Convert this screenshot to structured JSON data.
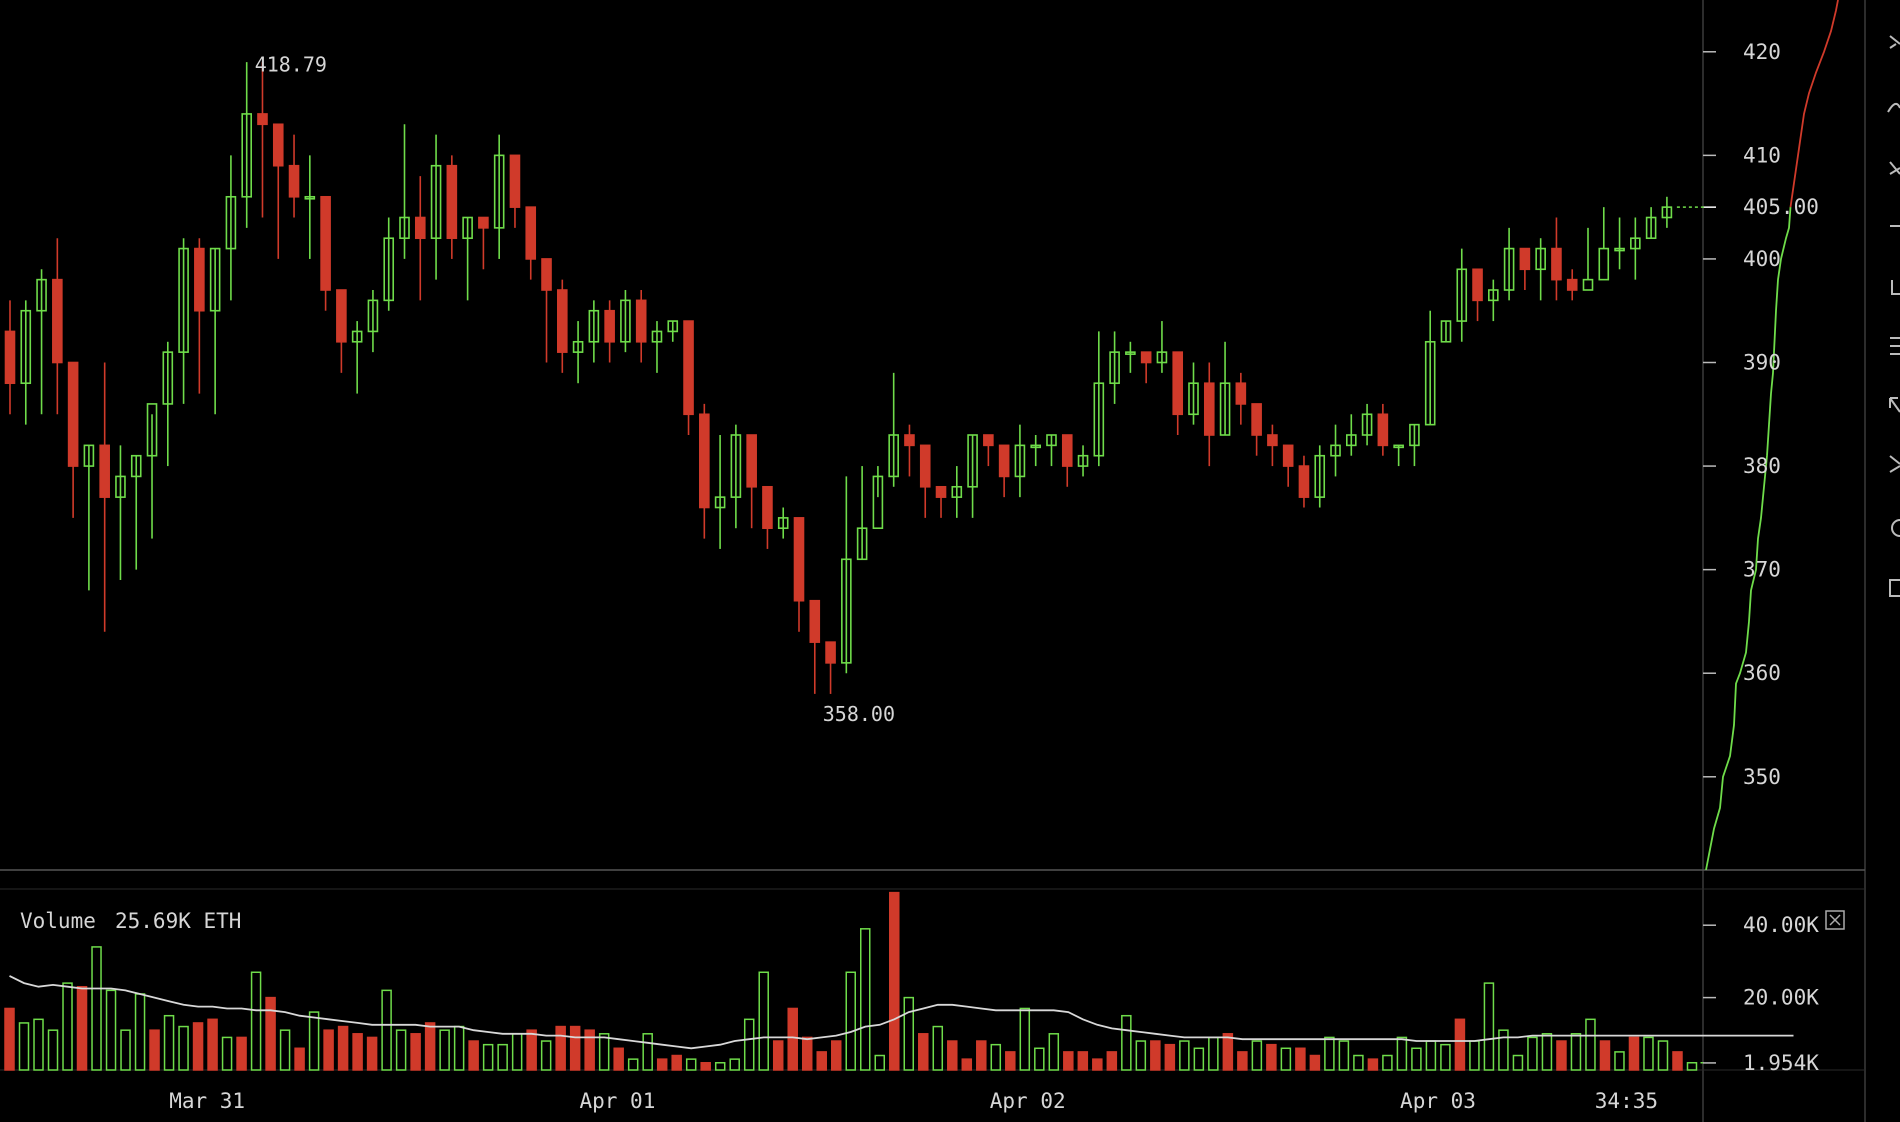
{
  "colors": {
    "up": "#6fdc4a",
    "down": "#d03a2a",
    "grid": "#444444",
    "text": "#d6d6d6",
    "ma": "#d8d8d8",
    "background": "#000000"
  },
  "toolbar": {
    "icons": [
      "crosshair-icon",
      "trend-line-icon",
      "fib-icon",
      "horizontal-line-icon",
      "vertical-line-icon",
      "parallel-channel-icon",
      "arrow-icon",
      "measure-icon",
      "circle-icon",
      "rectangle-icon"
    ]
  },
  "chart_data": {
    "type": "candlestick",
    "y_axis": {
      "min": 341,
      "max": 425,
      "ticks": [
        420,
        410,
        400,
        390,
        380,
        370,
        360,
        350
      ]
    },
    "last_price_label": "405.00",
    "last_price": 405,
    "high_label": "418.79",
    "high_value": 418.79,
    "low_label": "358.00",
    "low_value": 358,
    "x_labels": [
      "Mar 31",
      "Apr 01",
      "Apr 02",
      "Apr 03"
    ],
    "x_label_indices": [
      13,
      39,
      65,
      91
    ],
    "time_label": "34:35",
    "candles": [
      [
        393,
        388,
        396,
        385
      ],
      [
        388,
        395,
        396,
        384
      ],
      [
        395,
        398,
        399,
        385
      ],
      [
        398,
        390,
        402,
        385
      ],
      [
        390,
        380,
        390,
        375
      ],
      [
        380,
        382,
        382,
        368
      ],
      [
        382,
        377,
        390,
        364
      ],
      [
        377,
        379,
        382,
        369
      ],
      [
        379,
        381,
        381,
        370
      ],
      [
        381,
        386,
        385,
        373
      ],
      [
        386,
        391,
        392,
        380
      ],
      [
        391,
        401,
        402,
        386
      ],
      [
        401,
        395,
        402,
        387
      ],
      [
        395,
        401,
        401,
        385
      ],
      [
        401,
        406,
        410,
        396
      ],
      [
        406,
        414,
        419,
        403
      ],
      [
        414,
        413,
        419,
        404
      ],
      [
        413,
        409,
        413,
        400
      ],
      [
        409,
        406,
        412,
        404
      ],
      [
        406,
        406,
        410,
        400
      ],
      [
        406,
        397,
        406,
        395
      ],
      [
        397,
        392,
        397,
        389
      ],
      [
        392,
        393,
        394,
        387
      ],
      [
        393,
        396,
        397,
        391
      ],
      [
        396,
        402,
        404,
        395
      ],
      [
        402,
        404,
        413,
        400
      ],
      [
        404,
        402,
        408,
        396
      ],
      [
        402,
        409,
        412,
        398
      ],
      [
        409,
        402,
        410,
        400
      ],
      [
        402,
        404,
        404,
        396
      ],
      [
        404,
        403,
        403,
        399
      ],
      [
        403,
        410,
        412,
        400
      ],
      [
        410,
        405,
        410,
        403
      ],
      [
        405,
        400,
        405,
        398
      ],
      [
        400,
        397,
        400,
        390
      ],
      [
        397,
        391,
        398,
        389
      ],
      [
        391,
        392,
        394,
        388
      ],
      [
        392,
        395,
        396,
        390
      ],
      [
        395,
        392,
        396,
        390
      ],
      [
        392,
        396,
        397,
        391
      ],
      [
        396,
        392,
        397,
        390
      ],
      [
        392,
        393,
        394,
        389
      ],
      [
        393,
        394,
        394,
        392
      ],
      [
        394,
        385,
        394,
        383
      ],
      [
        385,
        376,
        386,
        373
      ],
      [
        376,
        377,
        383,
        372
      ],
      [
        377,
        383,
        384,
        374
      ],
      [
        383,
        378,
        383,
        374
      ],
      [
        378,
        374,
        378,
        372
      ],
      [
        374,
        375,
        376,
        373
      ],
      [
        375,
        367,
        375,
        364
      ],
      [
        367,
        363,
        367,
        358
      ],
      [
        363,
        361,
        363,
        358
      ],
      [
        361,
        371,
        379,
        360
      ],
      [
        371,
        374,
        380,
        371
      ],
      [
        374,
        379,
        380,
        377
      ],
      [
        379,
        383,
        389,
        378
      ],
      [
        383,
        382,
        384,
        379
      ],
      [
        382,
        378,
        382,
        375
      ],
      [
        378,
        377,
        378,
        375
      ],
      [
        377,
        378,
        380,
        375
      ],
      [
        378,
        383,
        383,
        375
      ],
      [
        383,
        382,
        383,
        380
      ],
      [
        382,
        379,
        382,
        377
      ],
      [
        379,
        382,
        384,
        377
      ],
      [
        382,
        382,
        383,
        380
      ],
      [
        382,
        383,
        383,
        380
      ],
      [
        383,
        380,
        383,
        378
      ],
      [
        380,
        381,
        382,
        379
      ],
      [
        381,
        388,
        393,
        380
      ],
      [
        388,
        391,
        393,
        386
      ],
      [
        391,
        391,
        392,
        389
      ],
      [
        391,
        390,
        391,
        388
      ],
      [
        390,
        391,
        394,
        389
      ],
      [
        391,
        385,
        391,
        383
      ],
      [
        385,
        388,
        390,
        384
      ],
      [
        388,
        383,
        390,
        380
      ],
      [
        383,
        388,
        392,
        383
      ],
      [
        388,
        386,
        389,
        384
      ],
      [
        386,
        383,
        386,
        381
      ],
      [
        383,
        382,
        384,
        380
      ],
      [
        382,
        380,
        382,
        378
      ],
      [
        380,
        377,
        381,
        376
      ],
      [
        377,
        381,
        382,
        376
      ],
      [
        381,
        382,
        384,
        379
      ],
      [
        382,
        383,
        385,
        381
      ],
      [
        383,
        385,
        386,
        382
      ],
      [
        385,
        382,
        386,
        381
      ],
      [
        382,
        382,
        382,
        380
      ],
      [
        382,
        384,
        384,
        380
      ],
      [
        384,
        392,
        395,
        384
      ],
      [
        392,
        394,
        394,
        392
      ],
      [
        394,
        399,
        401,
        392
      ],
      [
        399,
        396,
        399,
        394
      ],
      [
        396,
        397,
        398,
        394
      ],
      [
        397,
        401,
        403,
        396
      ],
      [
        401,
        399,
        401,
        397
      ],
      [
        399,
        401,
        402,
        396
      ],
      [
        401,
        398,
        404,
        396
      ],
      [
        398,
        397,
        399,
        396
      ],
      [
        397,
        398,
        403,
        398
      ],
      [
        398,
        401,
        405,
        401
      ],
      [
        401,
        401,
        404,
        399
      ],
      [
        401,
        402,
        404,
        398
      ],
      [
        402,
        404,
        405,
        402
      ],
      [
        404,
        405,
        406,
        403
      ]
    ],
    "depth_curve": [
      [
        0.0,
        341
      ],
      [
        4.0,
        343
      ],
      [
        8.0,
        345
      ],
      [
        14.0,
        347
      ],
      [
        17.0,
        350
      ],
      [
        24.0,
        352
      ],
      [
        28.0,
        355
      ],
      [
        29.0,
        357
      ],
      [
        30.0,
        359
      ],
      [
        34.0,
        360
      ],
      [
        40.0,
        362
      ],
      [
        43.0,
        365
      ],
      [
        45.0,
        368
      ],
      [
        50.0,
        370
      ],
      [
        52.0,
        373
      ],
      [
        55.0,
        375
      ],
      [
        57.0,
        377
      ],
      [
        59.0,
        379
      ],
      [
        61.0,
        381
      ],
      [
        63.0,
        384
      ],
      [
        65.0,
        387
      ],
      [
        67.0,
        389
      ],
      [
        68.0,
        391
      ],
      [
        70.0,
        395
      ],
      [
        72.0,
        398
      ],
      [
        75.0,
        400
      ],
      [
        80.0,
        402
      ],
      [
        83.0,
        403
      ],
      [
        84.5,
        405
      ],
      [
        86.0,
        406
      ],
      [
        89.0,
        408
      ],
      [
        92.0,
        410
      ],
      [
        95.0,
        412
      ],
      [
        98.0,
        414
      ],
      [
        103.0,
        416
      ],
      [
        110.0,
        418
      ],
      [
        118.0,
        420
      ],
      [
        125.0,
        422
      ],
      [
        130.0,
        424
      ],
      [
        132.0,
        425
      ]
    ],
    "volume": {
      "label": "Volume",
      "value_label": "25.69K ETH",
      "ticks": [
        {
          "value": 40000,
          "label": "40.00K"
        },
        {
          "value": 20000,
          "label": "20.00K"
        },
        {
          "value": 1954,
          "label": "1.954K"
        }
      ],
      "max": 50000,
      "values": [
        17000,
        13000,
        14000,
        11000,
        24000,
        23000,
        34000,
        22000,
        11000,
        21000,
        11000,
        15000,
        12000,
        13000,
        14000,
        9000,
        9000,
        27000,
        20000,
        11000,
        6000,
        16000,
        11000,
        12000,
        10000,
        9000,
        22000,
        11000,
        10000,
        13000,
        11000,
        12000,
        8000,
        7000,
        7000,
        10000,
        11000,
        8000,
        12000,
        12000,
        11000,
        10000,
        6000,
        3000,
        10000,
        3000,
        4000,
        3000,
        2000,
        2000,
        3000,
        14000,
        27000,
        8000,
        17000,
        9000,
        5000,
        8000,
        27000,
        39000,
        4000,
        49000,
        20000,
        10000,
        12000,
        8000,
        3000,
        8000,
        7000,
        5000,
        17000,
        6000,
        10000,
        5000,
        5000,
        3000,
        5000,
        15000,
        8000,
        8000,
        7000,
        8000,
        6000,
        9000,
        10000,
        5000,
        8000,
        7000,
        6000,
        6000,
        4000,
        9000,
        8000,
        4000,
        3000,
        4000,
        9000,
        6000,
        8000,
        7000,
        14000,
        8000,
        24000,
        11000,
        4000,
        9000,
        10000,
        8000,
        10000,
        14000,
        8000,
        5000,
        9000,
        9000,
        8000,
        5000,
        2000
      ],
      "ma": [
        26000,
        24000,
        23000,
        23500,
        23000,
        22500,
        22500,
        22500,
        22000,
        21000,
        20000,
        19000,
        18000,
        17500,
        17500,
        17000,
        17000,
        16500,
        16500,
        16000,
        15000,
        14500,
        14000,
        13500,
        13000,
        12500,
        12500,
        12500,
        12500,
        12000,
        12000,
        12000,
        11000,
        10500,
        10000,
        10000,
        10000,
        9500,
        9500,
        9000,
        9000,
        9000,
        8500,
        8000,
        7500,
        7000,
        6500,
        6000,
        6500,
        7000,
        8000,
        8500,
        9000,
        9000,
        9000,
        8500,
        9000,
        9500,
        10500,
        12000,
        12500,
        14000,
        16000,
        17000,
        18000,
        18000,
        17500,
        17000,
        16500,
        16500,
        16500,
        16500,
        16500,
        16000,
        14000,
        12500,
        11500,
        11000,
        10500,
        10000,
        9500,
        9000,
        9000,
        9000,
        9000,
        8500,
        8500,
        8500,
        8500,
        8500,
        8500,
        8500,
        8500,
        8500,
        8500,
        8500,
        8500,
        8000,
        8000,
        8000,
        8000,
        8000,
        8500,
        9000,
        9000,
        9500,
        9500,
        9500,
        9500,
        9500,
        9500,
        9500,
        9500,
        9500,
        9500,
        9500,
        9500,
        9500,
        9500,
        9500,
        9500,
        9500,
        9500,
        9500
      ]
    }
  }
}
